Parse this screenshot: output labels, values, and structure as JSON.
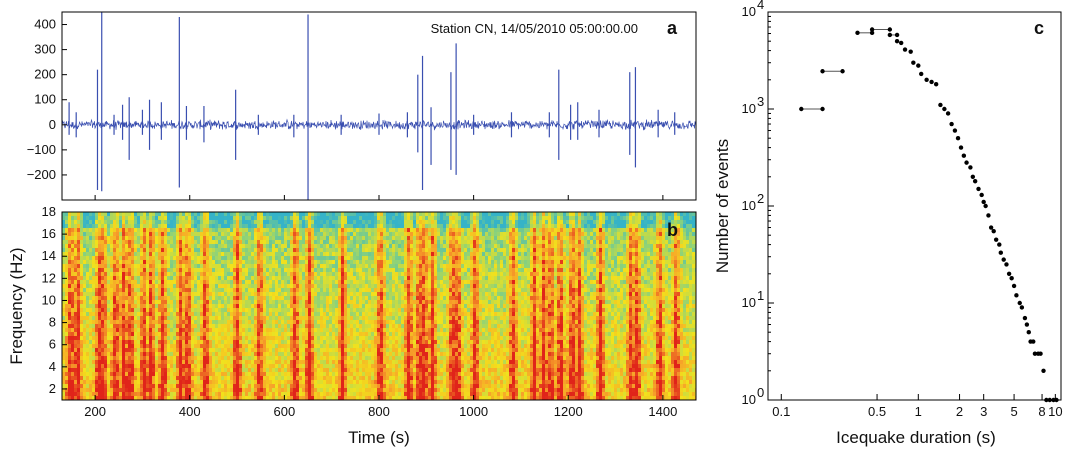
{
  "chart_data": [
    {
      "panel": "a",
      "type": "line",
      "annotation": "Station CN, 14/05/2010  05:00:00.00",
      "xlim": [
        130,
        1470
      ],
      "ylim": [
        -300,
        450
      ],
      "yticks": [
        -200,
        -100,
        0,
        100,
        200,
        300,
        400
      ],
      "xticks": [
        200,
        400,
        600,
        800,
        1000,
        1200,
        1400
      ],
      "series_color": "#3a4fb0",
      "spikes": [
        [
          145,
          90,
          -40
        ],
        [
          160,
          50,
          -50
        ],
        [
          205,
          220,
          -260
        ],
        [
          214,
          450,
          -265
        ],
        [
          240,
          40,
          -40
        ],
        [
          258,
          80,
          -60
        ],
        [
          272,
          110,
          -140
        ],
        [
          300,
          60,
          -40
        ],
        [
          315,
          100,
          -100
        ],
        [
          340,
          90,
          -60
        ],
        [
          378,
          430,
          -250
        ],
        [
          393,
          75,
          -60
        ],
        [
          430,
          75,
          -70
        ],
        [
          497,
          140,
          -140
        ],
        [
          545,
          40,
          -40
        ],
        [
          620,
          40,
          -50
        ],
        [
          650,
          440,
          -300
        ],
        [
          720,
          40,
          -40
        ],
        [
          800,
          45,
          -40
        ],
        [
          860,
          50,
          -50
        ],
        [
          882,
          200,
          -110
        ],
        [
          892,
          275,
          -260
        ],
        [
          910,
          70,
          -160
        ],
        [
          952,
          210,
          -180
        ],
        [
          963,
          325,
          -200
        ],
        [
          1000,
          40,
          -40
        ],
        [
          1080,
          50,
          -50
        ],
        [
          1160,
          50,
          -50
        ],
        [
          1180,
          220,
          -140
        ],
        [
          1205,
          80,
          -60
        ],
        [
          1220,
          90,
          -60
        ],
        [
          1265,
          60,
          -50
        ],
        [
          1330,
          210,
          -120
        ],
        [
          1342,
          230,
          -170
        ],
        [
          1390,
          60,
          -50
        ],
        [
          1425,
          50,
          -40
        ]
      ]
    },
    {
      "panel": "b",
      "type": "heatmap",
      "ylabel": "Frequency (Hz)",
      "xlabel": "Time (s)",
      "xlim": [
        130,
        1470
      ],
      "ylim": [
        1,
        18
      ],
      "yticks": [
        2,
        4,
        6,
        8,
        10,
        12,
        14,
        16,
        18
      ],
      "xticks": [
        200,
        400,
        600,
        800,
        1000,
        1200,
        1400
      ],
      "xtick_labels": [
        "200",
        "400",
        "600",
        "800",
        "1000",
        "1200",
        "1400"
      ],
      "colormap": [
        "#35b3c8",
        "#8cd27a",
        "#f2e21c",
        "#f7a02a",
        "#e0241a"
      ],
      "event_times": [
        145,
        160,
        205,
        214,
        240,
        258,
        272,
        300,
        315,
        340,
        378,
        393,
        430,
        497,
        545,
        620,
        650,
        720,
        800,
        860,
        882,
        892,
        910,
        952,
        963,
        1000,
        1080,
        1125,
        1145,
        1160,
        1180,
        1205,
        1220,
        1265,
        1330,
        1342,
        1390,
        1425
      ]
    },
    {
      "panel": "c",
      "type": "scatter",
      "xlabel": "Icequake duration (s)",
      "ylabel": "Number of events",
      "xscale": "log",
      "yscale": "log",
      "xlim": [
        0.08,
        11
      ],
      "ylim": [
        1,
        10000
      ],
      "xticks": [
        0.1,
        0.5,
        1,
        2,
        3,
        5,
        8,
        10
      ],
      "xtick_labels": [
        "0.1",
        "0.5",
        "1",
        "2",
        "3",
        "5",
        "8",
        "10"
      ],
      "yticks": [
        1,
        10,
        100,
        1000,
        10000
      ],
      "ytick_bases": [
        "10",
        "10",
        "10",
        "10",
        "10"
      ],
      "ytick_exponents": [
        "0",
        "1",
        "2",
        "3",
        "4"
      ],
      "bins": [
        [
          0.14,
          0.2,
          1000
        ],
        [
          0.2,
          0.28,
          2450
        ],
        [
          0.36,
          0.46,
          6100
        ],
        [
          0.46,
          0.62,
          6600
        ],
        [
          0.62,
          0.7,
          5800
        ]
      ],
      "points": [
        [
          0.7,
          5000
        ],
        [
          0.75,
          4800
        ],
        [
          0.8,
          4100
        ],
        [
          0.88,
          3900
        ],
        [
          0.92,
          3000
        ],
        [
          1.0,
          2800
        ],
        [
          1.05,
          2300
        ],
        [
          1.15,
          2000
        ],
        [
          1.25,
          1900
        ],
        [
          1.35,
          1800
        ],
        [
          1.45,
          1100
        ],
        [
          1.55,
          1000
        ],
        [
          1.65,
          900
        ],
        [
          1.75,
          700
        ],
        [
          1.85,
          600
        ],
        [
          1.95,
          500
        ],
        [
          2.05,
          400
        ],
        [
          2.15,
          330
        ],
        [
          2.25,
          280
        ],
        [
          2.4,
          250
        ],
        [
          2.5,
          200
        ],
        [
          2.6,
          180
        ],
        [
          2.75,
          150
        ],
        [
          2.9,
          130
        ],
        [
          3.0,
          110
        ],
        [
          3.1,
          100
        ],
        [
          3.25,
          80
        ],
        [
          3.4,
          60
        ],
        [
          3.55,
          55
        ],
        [
          3.7,
          45
        ],
        [
          3.9,
          40
        ],
        [
          4.0,
          33
        ],
        [
          4.2,
          28
        ],
        [
          4.4,
          25
        ],
        [
          4.6,
          20
        ],
        [
          4.8,
          18
        ],
        [
          5.0,
          15
        ],
        [
          5.2,
          12
        ],
        [
          5.5,
          10
        ],
        [
          5.7,
          9
        ],
        [
          6.0,
          7
        ],
        [
          6.2,
          6
        ],
        [
          6.4,
          5
        ],
        [
          6.6,
          4
        ],
        [
          6.9,
          4
        ],
        [
          7.1,
          3
        ],
        [
          7.5,
          3
        ],
        [
          7.8,
          3
        ],
        [
          8.2,
          2
        ],
        [
          8.6,
          1
        ],
        [
          9.1,
          1
        ],
        [
          9.7,
          1
        ],
        [
          10.2,
          1
        ]
      ]
    }
  ],
  "labels": {
    "panel_a": "a",
    "panel_b": "b",
    "panel_c": "c",
    "annotation_a": "Station CN, 14/05/2010  05:00:00.00",
    "ylabel_b": "Frequency (Hz)",
    "xlabel_b": "Time (s)",
    "xlabel_c": "Icequake duration (s)",
    "ylabel_c": "Number of events"
  }
}
